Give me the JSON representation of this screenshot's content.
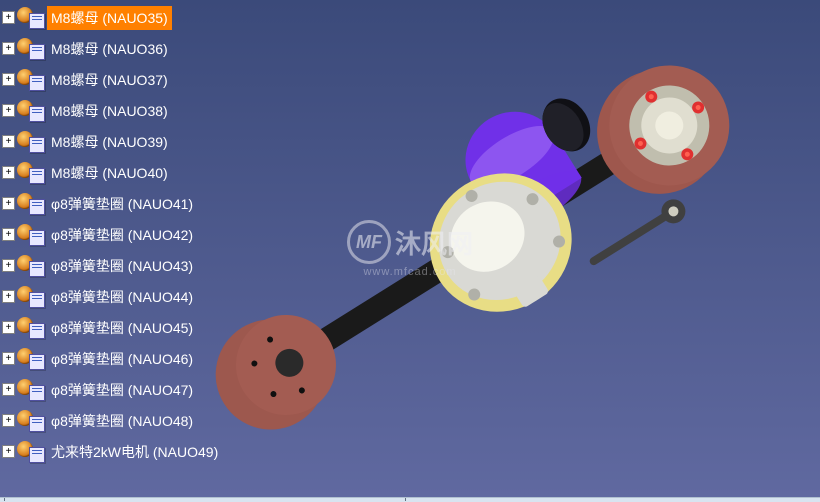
{
  "tree": {
    "items": [
      {
        "label": "M8螺母 (NAUO35)",
        "selected": true
      },
      {
        "label": "M8螺母 (NAUO36)",
        "selected": false
      },
      {
        "label": "M8螺母 (NAUO37)",
        "selected": false
      },
      {
        "label": "M8螺母 (NAUO38)",
        "selected": false
      },
      {
        "label": "M8螺母 (NAUO39)",
        "selected": false
      },
      {
        "label": "M8螺母 (NAUO40)",
        "selected": false
      },
      {
        "label": "φ8弹簧垫圈 (NAUO41)",
        "selected": false
      },
      {
        "label": "φ8弹簧垫圈 (NAUO42)",
        "selected": false
      },
      {
        "label": "φ8弹簧垫圈 (NAUO43)",
        "selected": false
      },
      {
        "label": "φ8弹簧垫圈 (NAUO44)",
        "selected": false
      },
      {
        "label": "φ8弹簧垫圈 (NAUO45)",
        "selected": false
      },
      {
        "label": "φ8弹簧垫圈 (NAUO46)",
        "selected": false
      },
      {
        "label": "φ8弹簧垫圈 (NAUO47)",
        "selected": false
      },
      {
        "label": "φ8弹簧垫圈 (NAUO48)",
        "selected": false
      },
      {
        "label": "尤来特2kW电机 (NAUO49)",
        "selected": false
      }
    ]
  },
  "watermark": {
    "logo_text": "沐风网",
    "logo_initials": "MF",
    "sub_text": "www.mfcad.com"
  },
  "model": {
    "type": "3d-assembly",
    "description": "rear-axle-with-differential-and-motor",
    "colors": {
      "brake_drum": "#a35c52",
      "axle_shaft": "#1a1a1a",
      "differential_housing": "#d9d9d4",
      "differential_highlight": "#f5f5ed",
      "differential_gasket": "#e8dd85",
      "motor_body": "#7030e8",
      "motor_cap": "#8d55f0",
      "wheel_hub": "#e0ded0",
      "wheel_stud": "#e03030",
      "hub_rim": "#c0beae",
      "control_arm": "#404040",
      "background_top": "#3b4a7a",
      "background_bottom": "#6069a0"
    },
    "orientation_deg": -32
  }
}
